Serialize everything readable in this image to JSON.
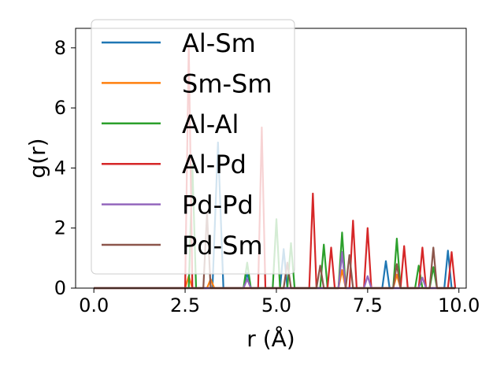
{
  "chart_data": {
    "type": "line",
    "xlabel": "r (Å)",
    "ylabel": "g(r)",
    "xlim": [
      -0.5,
      10.2
    ],
    "ylim": [
      0,
      8.65
    ],
    "xticks": [
      0.0,
      2.5,
      5.0,
      7.5,
      10.0
    ],
    "xtick_labels": [
      "0.0",
      "2.5",
      "5.0",
      "7.5",
      "10.0"
    ],
    "yticks": [
      0,
      2,
      4,
      6,
      8
    ],
    "ytick_labels": [
      "0",
      "2",
      "4",
      "6",
      "8"
    ],
    "grid": false,
    "legend_position": "top-left",
    "series": [
      {
        "name": "Al-Sm",
        "color": "#1f77b4",
        "x": [
          0,
          3.25,
          3.4,
          3.55,
          4.1,
          4.2,
          4.3,
          5.1,
          5.2,
          5.3,
          6.7,
          6.8,
          6.9,
          7.9,
          8.0,
          8.1,
          9.6,
          9.7,
          9.8,
          9.9
        ],
        "y": [
          0,
          0,
          4.85,
          0,
          0,
          0.5,
          0,
          0,
          1.3,
          0,
          0,
          1.2,
          0,
          0,
          0.9,
          0,
          0,
          1.25,
          0,
          0
        ]
      },
      {
        "name": "Sm-Sm",
        "color": "#ff7f0e",
        "x": [
          0,
          2.5,
          2.6,
          2.7,
          3.1,
          3.2,
          3.3,
          6.7,
          6.8,
          6.9,
          8.2,
          8.3,
          8.4,
          9.9
        ],
        "y": [
          0,
          0,
          0.4,
          0,
          0,
          0.3,
          0,
          0,
          0.6,
          0,
          0,
          0.45,
          0,
          0
        ]
      },
      {
        "name": "Al-Al",
        "color": "#2ca02c",
        "x": [
          0,
          2.6,
          2.7,
          2.8,
          4.1,
          4.2,
          4.3,
          4.9,
          5.0,
          5.1,
          5.3,
          5.4,
          5.5,
          6.2,
          6.3,
          6.4,
          6.7,
          6.8,
          6.9,
          8.2,
          8.3,
          8.4,
          8.8,
          8.9,
          9.0,
          9.2,
          9.3,
          9.4,
          9.9
        ],
        "y": [
          0,
          0,
          4.1,
          0,
          0,
          0.85,
          0,
          0,
          2.3,
          0,
          0,
          1.5,
          0,
          0,
          1.45,
          0,
          0,
          1.85,
          0,
          0,
          1.65,
          0,
          0,
          0.75,
          0,
          0,
          0.7,
          0,
          0
        ]
      },
      {
        "name": "Al-Pd",
        "color": "#d62728",
        "x": [
          0,
          2.5,
          2.6,
          2.7,
          4.5,
          4.6,
          4.7,
          5.9,
          6.0,
          6.1,
          6.4,
          6.5,
          6.6,
          7.0,
          7.1,
          7.2,
          7.4,
          7.5,
          7.6,
          8.4,
          8.5,
          8.6,
          8.9,
          9.0,
          9.1,
          9.7,
          9.8,
          9.9
        ],
        "y": [
          0,
          0,
          8.1,
          0,
          0,
          5.35,
          0,
          0,
          3.15,
          0,
          0,
          1.35,
          0,
          0,
          2.25,
          0,
          0,
          2.0,
          0,
          0,
          1.4,
          0,
          0,
          1.35,
          0,
          0,
          1.2,
          0
        ]
      },
      {
        "name": "Pd-Pd",
        "color": "#9467bd",
        "x": [
          0,
          4.1,
          4.2,
          4.3,
          6.7,
          6.8,
          6.9,
          7.4,
          7.5,
          7.6,
          8.9,
          9.0,
          9.1,
          9.9
        ],
        "y": [
          0,
          0,
          0.3,
          0,
          0,
          1.2,
          0,
          0,
          0.4,
          0,
          0,
          0.35,
          0,
          0
        ]
      },
      {
        "name": "Pd-Sm",
        "color": "#8c564b",
        "x": [
          0,
          3.0,
          3.1,
          3.2,
          5.2,
          5.3,
          5.4,
          6.1,
          6.2,
          6.3,
          6.9,
          7.0,
          7.1,
          8.2,
          8.3,
          8.4,
          9.2,
          9.3,
          9.4,
          9.9
        ],
        "y": [
          0,
          0,
          2.5,
          0,
          0,
          0.85,
          0,
          0,
          0.75,
          0,
          0,
          1.1,
          0,
          0,
          0.8,
          0,
          0,
          1.35,
          0,
          0
        ]
      }
    ]
  }
}
